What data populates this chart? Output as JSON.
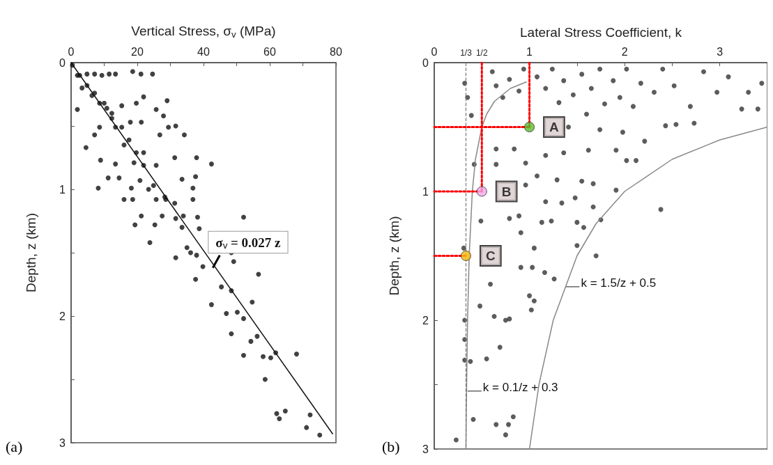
{
  "chart_data": [
    {
      "type": "scatter",
      "xlabel": "Vertical Stress, σ$_{v}$ (MPa)",
      "ylabel": "Depth, z (km)",
      "xlim": [
        0,
        80
      ],
      "ylim": [
        3,
        0
      ],
      "xticks": [
        0,
        {
          "value": 10,
          "label": null
        },
        20,
        {
          "value": 30,
          "label": null
        },
        40,
        {
          "value": 50,
          "label": null
        },
        60,
        {
          "value": 70,
          "label": null
        },
        80
      ],
      "yticks": [
        0,
        {
          "value": 0.5,
          "label": null
        },
        1,
        {
          "value": 1.5,
          "label": null
        },
        2,
        {
          "value": 2.5,
          "label": null
        },
        3
      ],
      "grid": false,
      "marker": "circle",
      "series": [
        {
          "color": "#111111",
          "x": [
            1.9,
            4.8,
            7.1,
            9.3,
            11.5,
            13.4,
            18.6,
            21.1,
            24.6,
            3.3,
            6.3,
            8.6,
            10.8,
            15.3,
            19.7,
            21.9,
            29.0,
            1.9,
            25.7,
            27.9,
            12.3,
            17.9,
            21.2,
            8.6,
            13.4,
            29.4,
            31.6,
            26.8,
            34.2,
            7.1,
            4.5,
            16.0,
            21.9,
            8.9,
            13.4,
            19.0,
            25.7,
            31.3,
            37.9,
            42.4,
            11.2,
            14.5,
            20.8,
            33.5,
            37.6,
            8.2,
            18.2,
            23.4,
            36.8,
            16.0,
            18.6,
            25.7,
            28.3,
            31.3,
            36.8,
            21.2,
            19.3,
            25.3,
            27.5,
            31.6,
            33.9,
            38.2,
            38.7,
            52.1,
            23.8,
            33.5,
            35.0,
            31.6,
            36.1,
            37.9,
            39.8,
            48.4,
            49.1,
            37.6,
            45.4,
            48.4,
            56.6,
            42.4,
            46.9,
            50.2,
            54.7,
            52.1,
            48.4,
            54.3,
            56.2,
            52.1,
            58.0,
            60.3,
            61.8,
            68.1,
            58.6,
            62.1,
            62.9,
            64.7,
            71.1,
            72.2,
            75.1,
            0.4,
            2.6,
            4.8,
            7.1,
            10.0,
            12.3,
            15.3,
            17.5,
            19.7,
            21.9,
            24.9,
            28.6
          ],
          "values": [
            0.1,
            0.09,
            0.09,
            0.1,
            0.09,
            0.09,
            0.07,
            0.09,
            0.09,
            0.2,
            0.26,
            0.32,
            0.36,
            0.34,
            0.32,
            0.27,
            0.3,
            0.37,
            0.37,
            0.42,
            0.44,
            0.47,
            0.47,
            0.51,
            0.51,
            0.51,
            0.5,
            0.57,
            0.57,
            0.57,
            0.67,
            0.65,
            0.71,
            0.77,
            0.8,
            0.79,
            0.81,
            0.75,
            0.75,
            0.8,
            0.91,
            0.91,
            0.93,
            0.92,
            0.9,
            0.99,
            0.99,
            1.0,
            0.99,
            1.08,
            1.08,
            1.08,
            1.06,
            1.11,
            1.08,
            1.21,
            1.28,
            1.28,
            1.21,
            1.23,
            1.21,
            1.22,
            1.31,
            1.22,
            1.42,
            1.3,
            1.46,
            1.54,
            1.5,
            1.52,
            1.61,
            1.5,
            1.57,
            1.71,
            1.77,
            1.8,
            1.67,
            1.91,
            1.98,
            1.97,
            1.89,
            2.02,
            2.14,
            2.2,
            2.16,
            2.31,
            2.32,
            2.33,
            2.29,
            2.3,
            2.5,
            2.77,
            2.81,
            2.75,
            2.88,
            2.78,
            2.94,
            0.02,
            0.1,
            0.18,
            0.24,
            0.32,
            0.4,
            0.51,
            0.61,
            0.71,
            0.81,
            0.97,
            1.08
          ]
        },
        {
          "type": "line",
          "marker": "none",
          "line_style": "solid",
          "color": "#111111",
          "x": [
            0,
            79
          ],
          "values": [
            0,
            2.93
          ]
        }
      ],
      "annotations": [
        {
          "text": "σ$_{v}$ = 0.027 z",
          "x": 42.8,
          "y": 1.62
        },
        "(a)"
      ]
    },
    {
      "type": "scatter",
      "xlabel": "Lateral Stress Coefficient, k",
      "ylabel": "Depth, z (km)",
      "xlim": [
        0,
        3.5
      ],
      "ylim": [
        3,
        0
      ],
      "xticks": [
        0,
        {
          "value": 0.333,
          "label": "1/3"
        },
        {
          "value": 0.5,
          "label": "1/2"
        },
        1,
        {
          "value": 1.5,
          "label": null
        },
        2,
        {
          "value": 2.5,
          "label": null
        },
        3
      ],
      "yticks": [
        0,
        {
          "value": 0.5,
          "label": null
        },
        1,
        {
          "value": 1.5,
          "label": null
        },
        2,
        {
          "value": 2.5,
          "label": null
        },
        3
      ],
      "grid": false,
      "marker": "circle",
      "ref_lines": [
        {
          "axis": "x",
          "value": 0.333,
          "line_style": "dashed",
          "color": "#777777"
        }
      ],
      "series": [
        {
          "color": "#333333",
          "x": [
            0.35,
            0.32,
            0.39,
            0.61,
            0.65,
            0.72,
            0.79,
            0.89,
            0.94,
            1.08,
            1.17,
            1.24,
            1.31,
            1.36,
            1.46,
            1.55,
            1.6,
            1.65,
            1.74,
            1.79,
            1.88,
            1.95,
            2.02,
            2.09,
            2.17,
            2.31,
            2.4,
            2.52,
            2.54,
            2.69,
            2.73,
            2.83,
            2.97,
            3.09,
            3.23,
            3.3,
            3.4,
            3.44,
            1.41,
            1.74,
            1.98,
            2.21,
            2.43,
            0.65,
            0.84,
            0.96,
            1.17,
            1.36,
            1.62,
            1.91,
            2.02,
            2.12,
            0.42,
            0.65,
            1.08,
            1.29,
            1.55,
            1.67,
            1.91,
            0.96,
            1.17,
            1.34,
            1.48,
            1.67,
            2.38,
            0.49,
            0.79,
            0.89,
            1.13,
            1.23,
            1.5,
            1.57,
            1.75,
            0.91,
            1.05,
            1.5,
            1.7,
            0.31,
            0.91,
            1.03,
            1.16,
            1.26,
            0.59,
            1.0,
            1.05,
            1.02,
            0.48,
            0.32,
            0.63,
            0.75,
            0.79,
            0.32,
            0.69,
            0.32,
            0.38,
            0.55,
            0.41,
            0.65,
            0.78,
            0.83,
            0.75,
            0.23
          ],
          "values": [
            0.27,
            0.16,
            0.41,
            0.07,
            0.18,
            0.27,
            0.13,
            0.22,
            0.05,
            0.11,
            0.2,
            0.05,
            0.31,
            0.14,
            0.25,
            0.09,
            0.4,
            0.2,
            0.05,
            0.32,
            0.14,
            0.27,
            0.05,
            0.34,
            0.16,
            0.23,
            0.05,
            0.18,
            0.48,
            0.34,
            0.47,
            0.07,
            0.23,
            0.11,
            0.36,
            0.23,
            0.36,
            0.16,
            0.5,
            0.52,
            0.54,
            0.61,
            0.49,
            0.67,
            0.67,
            0.78,
            0.72,
            0.7,
            0.68,
            0.68,
            0.76,
            0.76,
            0.79,
            0.79,
            0.88,
            0.91,
            0.92,
            0.94,
            0.99,
            0.95,
            1.08,
            1.09,
            1.05,
            1.12,
            1.14,
            1.23,
            1.21,
            1.19,
            1.24,
            1.23,
            1.24,
            1.28,
            1.22,
            1.32,
            1.44,
            1.42,
            1.5,
            1.44,
            1.59,
            1.59,
            1.63,
            1.68,
            1.72,
            1.81,
            1.85,
            1.92,
            1.89,
            2.0,
            1.97,
            2.0,
            1.99,
            2.15,
            2.21,
            2.31,
            2.32,
            2.3,
            2.77,
            2.81,
            2.81,
            2.75,
            2.89,
            2.93
          ]
        },
        {
          "type": "line",
          "marker": "none",
          "line_style": "solid",
          "color": "#888888",
          "x": [
            3.5,
            3.0,
            2.5,
            2.0,
            1.7,
            1.5,
            1.25,
            1.1,
            1.0
          ],
          "values": [
            0.5,
            0.6,
            0.75,
            1.0,
            1.25,
            1.5,
            2.0,
            2.5,
            3.0
          ]
        },
        {
          "type": "line",
          "marker": "none",
          "line_style": "solid",
          "color": "#888888",
          "x": [
            0.967,
            0.8,
            0.633,
            0.55,
            0.5,
            0.433,
            0.4,
            0.367,
            0.35,
            0.34,
            0.333
          ],
          "values": [
            0.15,
            0.2,
            0.3,
            0.4,
            0.5,
            0.75,
            1.0,
            1.5,
            2.0,
            2.5,
            3.0
          ]
        },
        {
          "type": "line",
          "marker": "none",
          "line_style": "dotted",
          "color": "#ff0000",
          "x": [
            0,
            1
          ],
          "values": [
            0.5,
            0.5
          ]
        },
        {
          "type": "line",
          "marker": "none",
          "line_style": "dotted",
          "color": "#ff0000",
          "x": [
            1,
            1
          ],
          "values": [
            0,
            0.5
          ]
        },
        {
          "type": "line",
          "marker": "none",
          "line_style": "dotted",
          "color": "#ff0000",
          "x": [
            0,
            0.5
          ],
          "values": [
            1,
            1
          ]
        },
        {
          "type": "line",
          "marker": "none",
          "line_style": "dotted",
          "color": "#ff0000",
          "x": [
            0.5,
            0.5
          ],
          "values": [
            0,
            1
          ]
        },
        {
          "type": "line",
          "marker": "none",
          "line_style": "dotted",
          "color": "#ff0000",
          "x": [
            0,
            0.333
          ],
          "values": [
            1.5,
            1.5
          ]
        },
        {
          "name": "A",
          "color": "#5cbd2c",
          "x": [
            1
          ],
          "values": [
            0.5
          ]
        },
        {
          "name": "B",
          "color": "#f2a6ea",
          "x": [
            0.5
          ],
          "values": [
            1
          ]
        },
        {
          "name": "C",
          "color": "#f6b80c",
          "x": [
            0.333
          ],
          "values": [
            1.5
          ]
        }
      ],
      "annotations": [
        {
          "text": "k = 1.5/z + 0.5",
          "x": 1.38,
          "y": 1.74
        },
        {
          "text": "k = 0.1/z + 0.3",
          "x": 0.35,
          "y": 2.55
        },
        "(b)"
      ]
    }
  ]
}
